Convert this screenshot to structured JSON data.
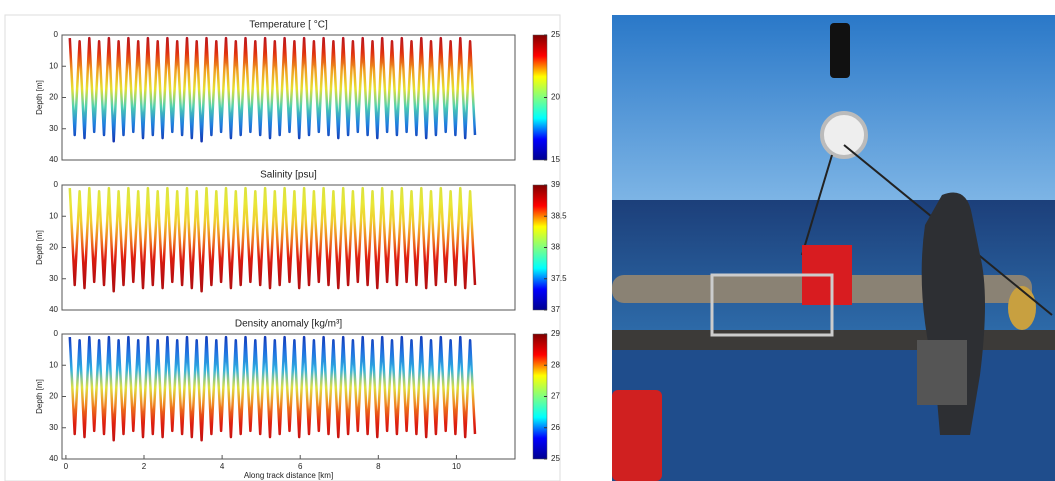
{
  "chart_data": [
    {
      "type": "line",
      "title": "Temperature [ °C]",
      "ylabel": "Depth [m]",
      "x": [
        0.1,
        0.225,
        0.35,
        0.475,
        0.6,
        0.725,
        0.85,
        0.975,
        1.1,
        1.225,
        1.35,
        1.475,
        1.6,
        1.725,
        1.85,
        1.975,
        2.1,
        2.225,
        2.35,
        2.475,
        2.6,
        2.725,
        2.85,
        2.975,
        3.1,
        3.225,
        3.35,
        3.475,
        3.6,
        3.725,
        3.85,
        3.975,
        4.1,
        4.225,
        4.35,
        4.475,
        4.6,
        4.725,
        4.85,
        4.975,
        5.1,
        5.225,
        5.35,
        5.475,
        5.6,
        5.725,
        5.85,
        5.975,
        6.1,
        6.225,
        6.35,
        6.475,
        6.6,
        6.725,
        6.85,
        6.975,
        7.1,
        7.225,
        7.35,
        7.475,
        7.6,
        7.725,
        7.85,
        7.975,
        8.1,
        8.225,
        8.35,
        8.475,
        8.6,
        8.725,
        8.85,
        8.975,
        9.1,
        9.225,
        9.35,
        9.475,
        9.6,
        9.725,
        9.85,
        9.975,
        10.1,
        10.225,
        10.35,
        10.475
      ],
      "values": [
        1,
        32,
        2,
        33,
        1,
        31,
        2,
        32,
        1,
        34,
        2,
        32,
        1,
        31,
        2,
        33,
        1,
        32,
        2,
        33,
        1,
        31,
        2,
        32,
        1,
        33,
        2,
        34,
        1,
        32,
        2,
        31,
        1,
        33,
        2,
        32,
        1,
        31,
        2,
        32,
        1,
        33,
        2,
        32,
        1,
        31,
        2,
        33,
        1,
        32,
        2,
        31,
        1,
        32,
        2,
        33,
        1,
        32,
        2,
        31,
        1,
        32,
        2,
        33,
        1,
        31,
        2,
        32,
        1,
        31,
        2,
        32,
        1,
        33,
        2,
        32,
        1,
        31,
        2,
        32,
        1,
        33,
        2,
        32
      ],
      "line_colors": [
        "#b01020",
        "#e03010",
        "#f0a020",
        "#e8e030",
        "#50d0b0",
        "#2080e0",
        "#1030b0",
        "#0a1a90"
      ],
      "colormap": [
        "#00008f",
        "#0000ff",
        "#00ffff",
        "#80ff80",
        "#ffff00",
        "#ff0000",
        "#800000"
      ],
      "xlim": [
        -0.1,
        11.5
      ],
      "ylim": [
        0,
        40
      ],
      "yticks": [
        0,
        10,
        20,
        30,
        40
      ],
      "clim": [
        15,
        25
      ],
      "cticks": [
        15,
        20,
        25
      ]
    },
    {
      "type": "line",
      "title": "Salinity [psu]",
      "ylabel": "Depth [m]",
      "x": [
        0.1,
        0.225,
        0.35,
        0.475,
        0.6,
        0.725,
        0.85,
        0.975,
        1.1,
        1.225,
        1.35,
        1.475,
        1.6,
        1.725,
        1.85,
        1.975,
        2.1,
        2.225,
        2.35,
        2.475,
        2.6,
        2.725,
        2.85,
        2.975,
        3.1,
        3.225,
        3.35,
        3.475,
        3.6,
        3.725,
        3.85,
        3.975,
        4.1,
        4.225,
        4.35,
        4.475,
        4.6,
        4.725,
        4.85,
        4.975,
        5.1,
        5.225,
        5.35,
        5.475,
        5.6,
        5.725,
        5.85,
        5.975,
        6.1,
        6.225,
        6.35,
        6.475,
        6.6,
        6.725,
        6.85,
        6.975,
        7.1,
        7.225,
        7.35,
        7.475,
        7.6,
        7.725,
        7.85,
        7.975,
        8.1,
        8.225,
        8.35,
        8.475,
        8.6,
        8.725,
        8.85,
        8.975,
        9.1,
        9.225,
        9.35,
        9.475,
        9.6,
        9.725,
        9.85,
        9.975,
        10.1,
        10.225,
        10.35,
        10.475
      ],
      "values": [
        1,
        32,
        2,
        33,
        1,
        31,
        2,
        32,
        1,
        34,
        2,
        32,
        1,
        31,
        2,
        33,
        1,
        32,
        2,
        33,
        1,
        31,
        2,
        32,
        1,
        33,
        2,
        34,
        1,
        32,
        2,
        31,
        1,
        33,
        2,
        32,
        1,
        31,
        2,
        32,
        1,
        33,
        2,
        32,
        1,
        31,
        2,
        33,
        1,
        32,
        2,
        31,
        1,
        32,
        2,
        33,
        1,
        32,
        2,
        31,
        1,
        32,
        2,
        33,
        1,
        31,
        2,
        32,
        1,
        31,
        2,
        32,
        1,
        33,
        2,
        32,
        1,
        31,
        2,
        32,
        1,
        33,
        2,
        32
      ],
      "line_colors": [
        "#d8e040",
        "#e8e838",
        "#f0d030",
        "#f08020",
        "#e02010",
        "#c01010",
        "#b01010",
        "#a01010"
      ],
      "colormap": [
        "#00008f",
        "#0000ff",
        "#00ffff",
        "#80ff80",
        "#ffff00",
        "#ff0000",
        "#800000"
      ],
      "xlim": [
        -0.1,
        11.5
      ],
      "ylim": [
        0,
        40
      ],
      "yticks": [
        0,
        10,
        20,
        30,
        40
      ],
      "clim": [
        37,
        39
      ],
      "cticks": [
        37,
        37.5,
        38,
        38.5,
        39
      ]
    },
    {
      "type": "line",
      "title": "Density anomaly [kg/m³]",
      "ylabel": "Depth [m]",
      "xlabel": "Along track distance [km]",
      "x": [
        0.1,
        0.225,
        0.35,
        0.475,
        0.6,
        0.725,
        0.85,
        0.975,
        1.1,
        1.225,
        1.35,
        1.475,
        1.6,
        1.725,
        1.85,
        1.975,
        2.1,
        2.225,
        2.35,
        2.475,
        2.6,
        2.725,
        2.85,
        2.975,
        3.1,
        3.225,
        3.35,
        3.475,
        3.6,
        3.725,
        3.85,
        3.975,
        4.1,
        4.225,
        4.35,
        4.475,
        4.6,
        4.725,
        4.85,
        4.975,
        5.1,
        5.225,
        5.35,
        5.475,
        5.6,
        5.725,
        5.85,
        5.975,
        6.1,
        6.225,
        6.35,
        6.475,
        6.6,
        6.725,
        6.85,
        6.975,
        7.1,
        7.225,
        7.35,
        7.475,
        7.6,
        7.725,
        7.85,
        7.975,
        8.1,
        8.225,
        8.35,
        8.475,
        8.6,
        8.725,
        8.85,
        8.975,
        9.1,
        9.225,
        9.35,
        9.475,
        9.6,
        9.725,
        9.85,
        9.975,
        10.1,
        10.225,
        10.35,
        10.475
      ],
      "values": [
        1,
        32,
        2,
        33,
        1,
        31,
        2,
        32,
        1,
        34,
        2,
        32,
        1,
        31,
        2,
        33,
        1,
        32,
        2,
        33,
        1,
        31,
        2,
        32,
        1,
        33,
        2,
        34,
        1,
        32,
        2,
        31,
        1,
        33,
        2,
        32,
        1,
        31,
        2,
        32,
        1,
        33,
        2,
        32,
        1,
        31,
        2,
        33,
        1,
        32,
        2,
        31,
        1,
        32,
        2,
        33,
        1,
        32,
        2,
        31,
        1,
        32,
        2,
        33,
        1,
        31,
        2,
        32,
        1,
        31,
        2,
        32,
        1,
        33,
        2,
        32,
        1,
        31,
        2,
        32,
        1,
        33,
        2,
        32
      ],
      "line_colors": [
        "#1030b0",
        "#2070e0",
        "#30b0e0",
        "#e0e040",
        "#f08020",
        "#e02010",
        "#c01010",
        "#b01010"
      ],
      "colormap": [
        "#00008f",
        "#0000ff",
        "#00ffff",
        "#80ff80",
        "#ffff00",
        "#ff0000",
        "#800000"
      ],
      "xlim": [
        -0.1,
        11.5
      ],
      "ylim": [
        0,
        40
      ],
      "yticks": [
        0,
        10,
        20,
        30,
        40
      ],
      "clim": [
        25,
        29
      ],
      "cticks": [
        25,
        26,
        27,
        28,
        29
      ],
      "xticks": [
        0,
        2,
        4,
        6,
        8,
        10
      ]
    }
  ]
}
